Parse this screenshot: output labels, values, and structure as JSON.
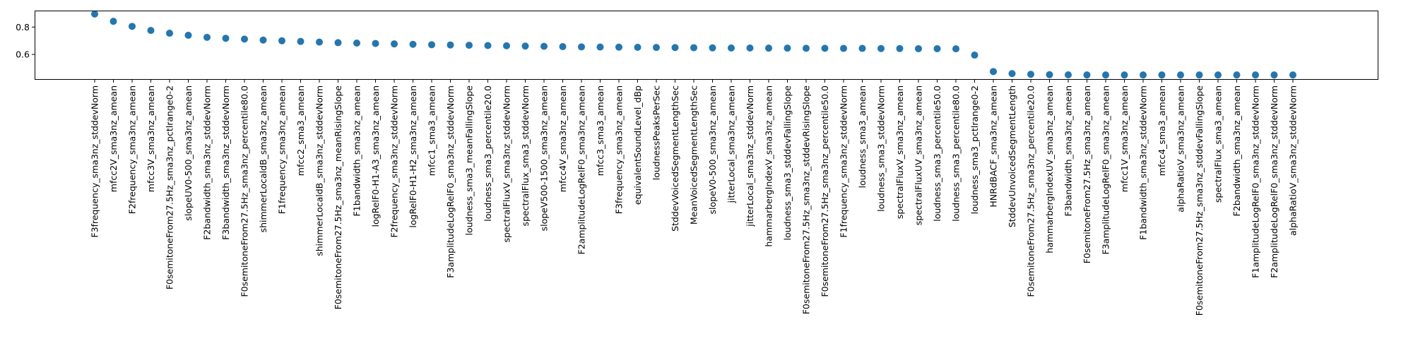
{
  "chart_data": {
    "type": "scatter",
    "title": "",
    "xlabel": "",
    "ylabel": "",
    "ylim": [
      0.42,
      0.915
    ],
    "yticks": [
      0.6,
      0.8
    ],
    "ytick_labels": [
      "0.6",
      "0.8"
    ],
    "marker_color": "#1f77b4",
    "categories": [
      "F3frequency_sma3nz_stddevNorm",
      "mfcc2V_sma3nz_amean",
      "F2frequency_sma3nz_amean",
      "mfcc3V_sma3nz_amean",
      "F0semitoneFrom27.5Hz_sma3nz_pctlrange0-2",
      "slopeUV0-500_sma3nz_amean",
      "F2bandwidth_sma3nz_stddevNorm",
      "F3bandwidth_sma3nz_stddevNorm",
      "F0semitoneFrom27.5Hz_sma3nz_percentile80.0",
      "shimmerLocaldB_sma3nz_amean",
      "F1frequency_sma3nz_amean",
      "mfcc2_sma3_amean",
      "shimmerLocaldB_sma3nz_stddevNorm",
      "F0semitoneFrom27.5Hz_sma3nz_meanRisingSlope",
      "F1bandwidth_sma3nz_amean",
      "logRelF0-H1-A3_sma3nz_amean",
      "F2frequency_sma3nz_stddevNorm",
      "logRelF0-H1-H2_sma3nz_amean",
      "mfcc1_sma3_amean",
      "F3amplitudeLogRelF0_sma3nz_stddevNorm",
      "loudness_sma3_meanFallingSlope",
      "loudness_sma3_percentile20.0",
      "spectralFluxV_sma3nz_stddevNorm",
      "spectralFlux_sma3_stddevNorm",
      "slopeV500-1500_sma3nz_amean",
      "mfcc4V_sma3nz_amean",
      "F2amplitudeLogRelF0_sma3nz_amean",
      "mfcc3_sma3_amean",
      "F3frequency_sma3nz_amean",
      "equivalentSoundLevel_dBp",
      "loudnessPeaksPerSec",
      "StddevVoicedSegmentLengthSec",
      "MeanVoicedSegmentLengthSec",
      "slopeV0-500_sma3nz_amean",
      "jitterLocal_sma3nz_amean",
      "jitterLocal_sma3nz_stddevNorm",
      "hammarbergIndexV_sma3nz_amean",
      "loudness_sma3_stddevFallingSlope",
      "F0semitoneFrom27.5Hz_sma3nz_stddevRisingSlope",
      "F0semitoneFrom27.5Hz_sma3nz_percentile50.0",
      "F1frequency_sma3nz_stddevNorm",
      "loudness_sma3_amean",
      "loudness_sma3_stddevNorm",
      "spectralFluxV_sma3nz_amean",
      "spectralFluxUV_sma3nz_amean",
      "loudness_sma3_percentile50.0",
      "loudness_sma3_percentile80.0",
      "loudness_sma3_pctlrange0-2",
      "HNRdBACF_sma3nz_amean",
      "StddevUnvoicedSegmentLength",
      "F0semitoneFrom27.5Hz_sma3nz_percentile20.0",
      "hammarbergIndexUV_sma3nz_amean",
      "F3bandwidth_sma3nz_amean",
      "F0semitoneFrom27.5Hz_sma3nz_amean",
      "F3amplitudeLogRelF0_sma3nz_amean",
      "mfcc1V_sma3nz_amean",
      "F1bandwidth_sma3nz_stddevNorm",
      "mfcc4_sma3_amean",
      "alphaRatioV_sma3nz_amean",
      "F0semitoneFrom27.5Hz_sma3nz_stddevFallingSlope",
      "spectralFlux_sma3_amean",
      "F2bandwidth_sma3nz_amean",
      "F1amplitudeLogRelF0_sma3nz_stddevNorm",
      "F2amplitudeLogRelF0_sma3nz_stddevNorm",
      "alphaRatioV_sma3nz_stddevNorm"
    ],
    "values": [
      0.895,
      0.842,
      0.805,
      0.775,
      0.755,
      0.74,
      0.725,
      0.718,
      0.712,
      0.705,
      0.7,
      0.695,
      0.69,
      0.686,
      0.683,
      0.68,
      0.677,
      0.674,
      0.671,
      0.669,
      0.667,
      0.665,
      0.663,
      0.661,
      0.659,
      0.657,
      0.655,
      0.654,
      0.653,
      0.652,
      0.651,
      0.65,
      0.649,
      0.648,
      0.647,
      0.647,
      0.646,
      0.646,
      0.645,
      0.645,
      0.644,
      0.644,
      0.643,
      0.643,
      0.642,
      0.642,
      0.641,
      0.595,
      0.475,
      0.46,
      0.455,
      0.452,
      0.451,
      0.45,
      0.45,
      0.45,
      0.45,
      0.45,
      0.45,
      0.45,
      0.45,
      0.45,
      0.45,
      0.45,
      0.45
    ]
  }
}
